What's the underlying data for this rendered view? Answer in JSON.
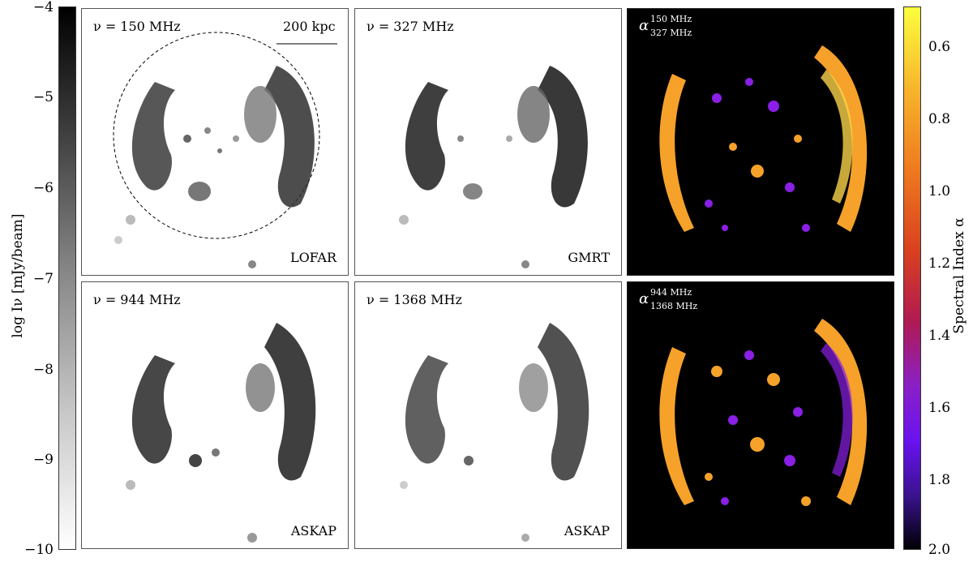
{
  "left_colorbar": {
    "title": "log Iν [mJy/beam]",
    "ticks": [
      "−4",
      "−5",
      "−6",
      "−7",
      "−8",
      "−9",
      "−10"
    ],
    "range": [
      -10,
      -4
    ],
    "colormap": "grey"
  },
  "right_colorbar": {
    "title": "Spectral Index α",
    "ticks": [
      "0.6",
      "0.8",
      "1.0",
      "1.2",
      "1.4",
      "1.6",
      "1.8",
      "2.0"
    ],
    "range": [
      0.5,
      2.0
    ],
    "colormap": "gnuplot-like"
  },
  "panels": {
    "p150": {
      "freq": "ν = 150 MHz",
      "telescope": "LOFAR",
      "scale_bar": "200 kpc"
    },
    "p327": {
      "freq": "ν = 327 MHz",
      "telescope": "GMRT"
    },
    "p944": {
      "freq": "ν = 944 MHz",
      "telescope": "ASKAP"
    },
    "p1368": {
      "freq": "ν = 1368 MHz",
      "telescope": "ASKAP"
    },
    "alpha_top": {
      "symbol": "α",
      "sup": "150 MHz",
      "sub": "327 MHz"
    },
    "alpha_bottom": {
      "symbol": "α",
      "sup": "944 MHz",
      "sub": "1368 MHz"
    }
  },
  "colors": {
    "spix_bg": "#000000",
    "spix_orange": "#f5a12a",
    "spix_yellow": "#f9d24a",
    "spix_purple": "#8a1fe6"
  }
}
